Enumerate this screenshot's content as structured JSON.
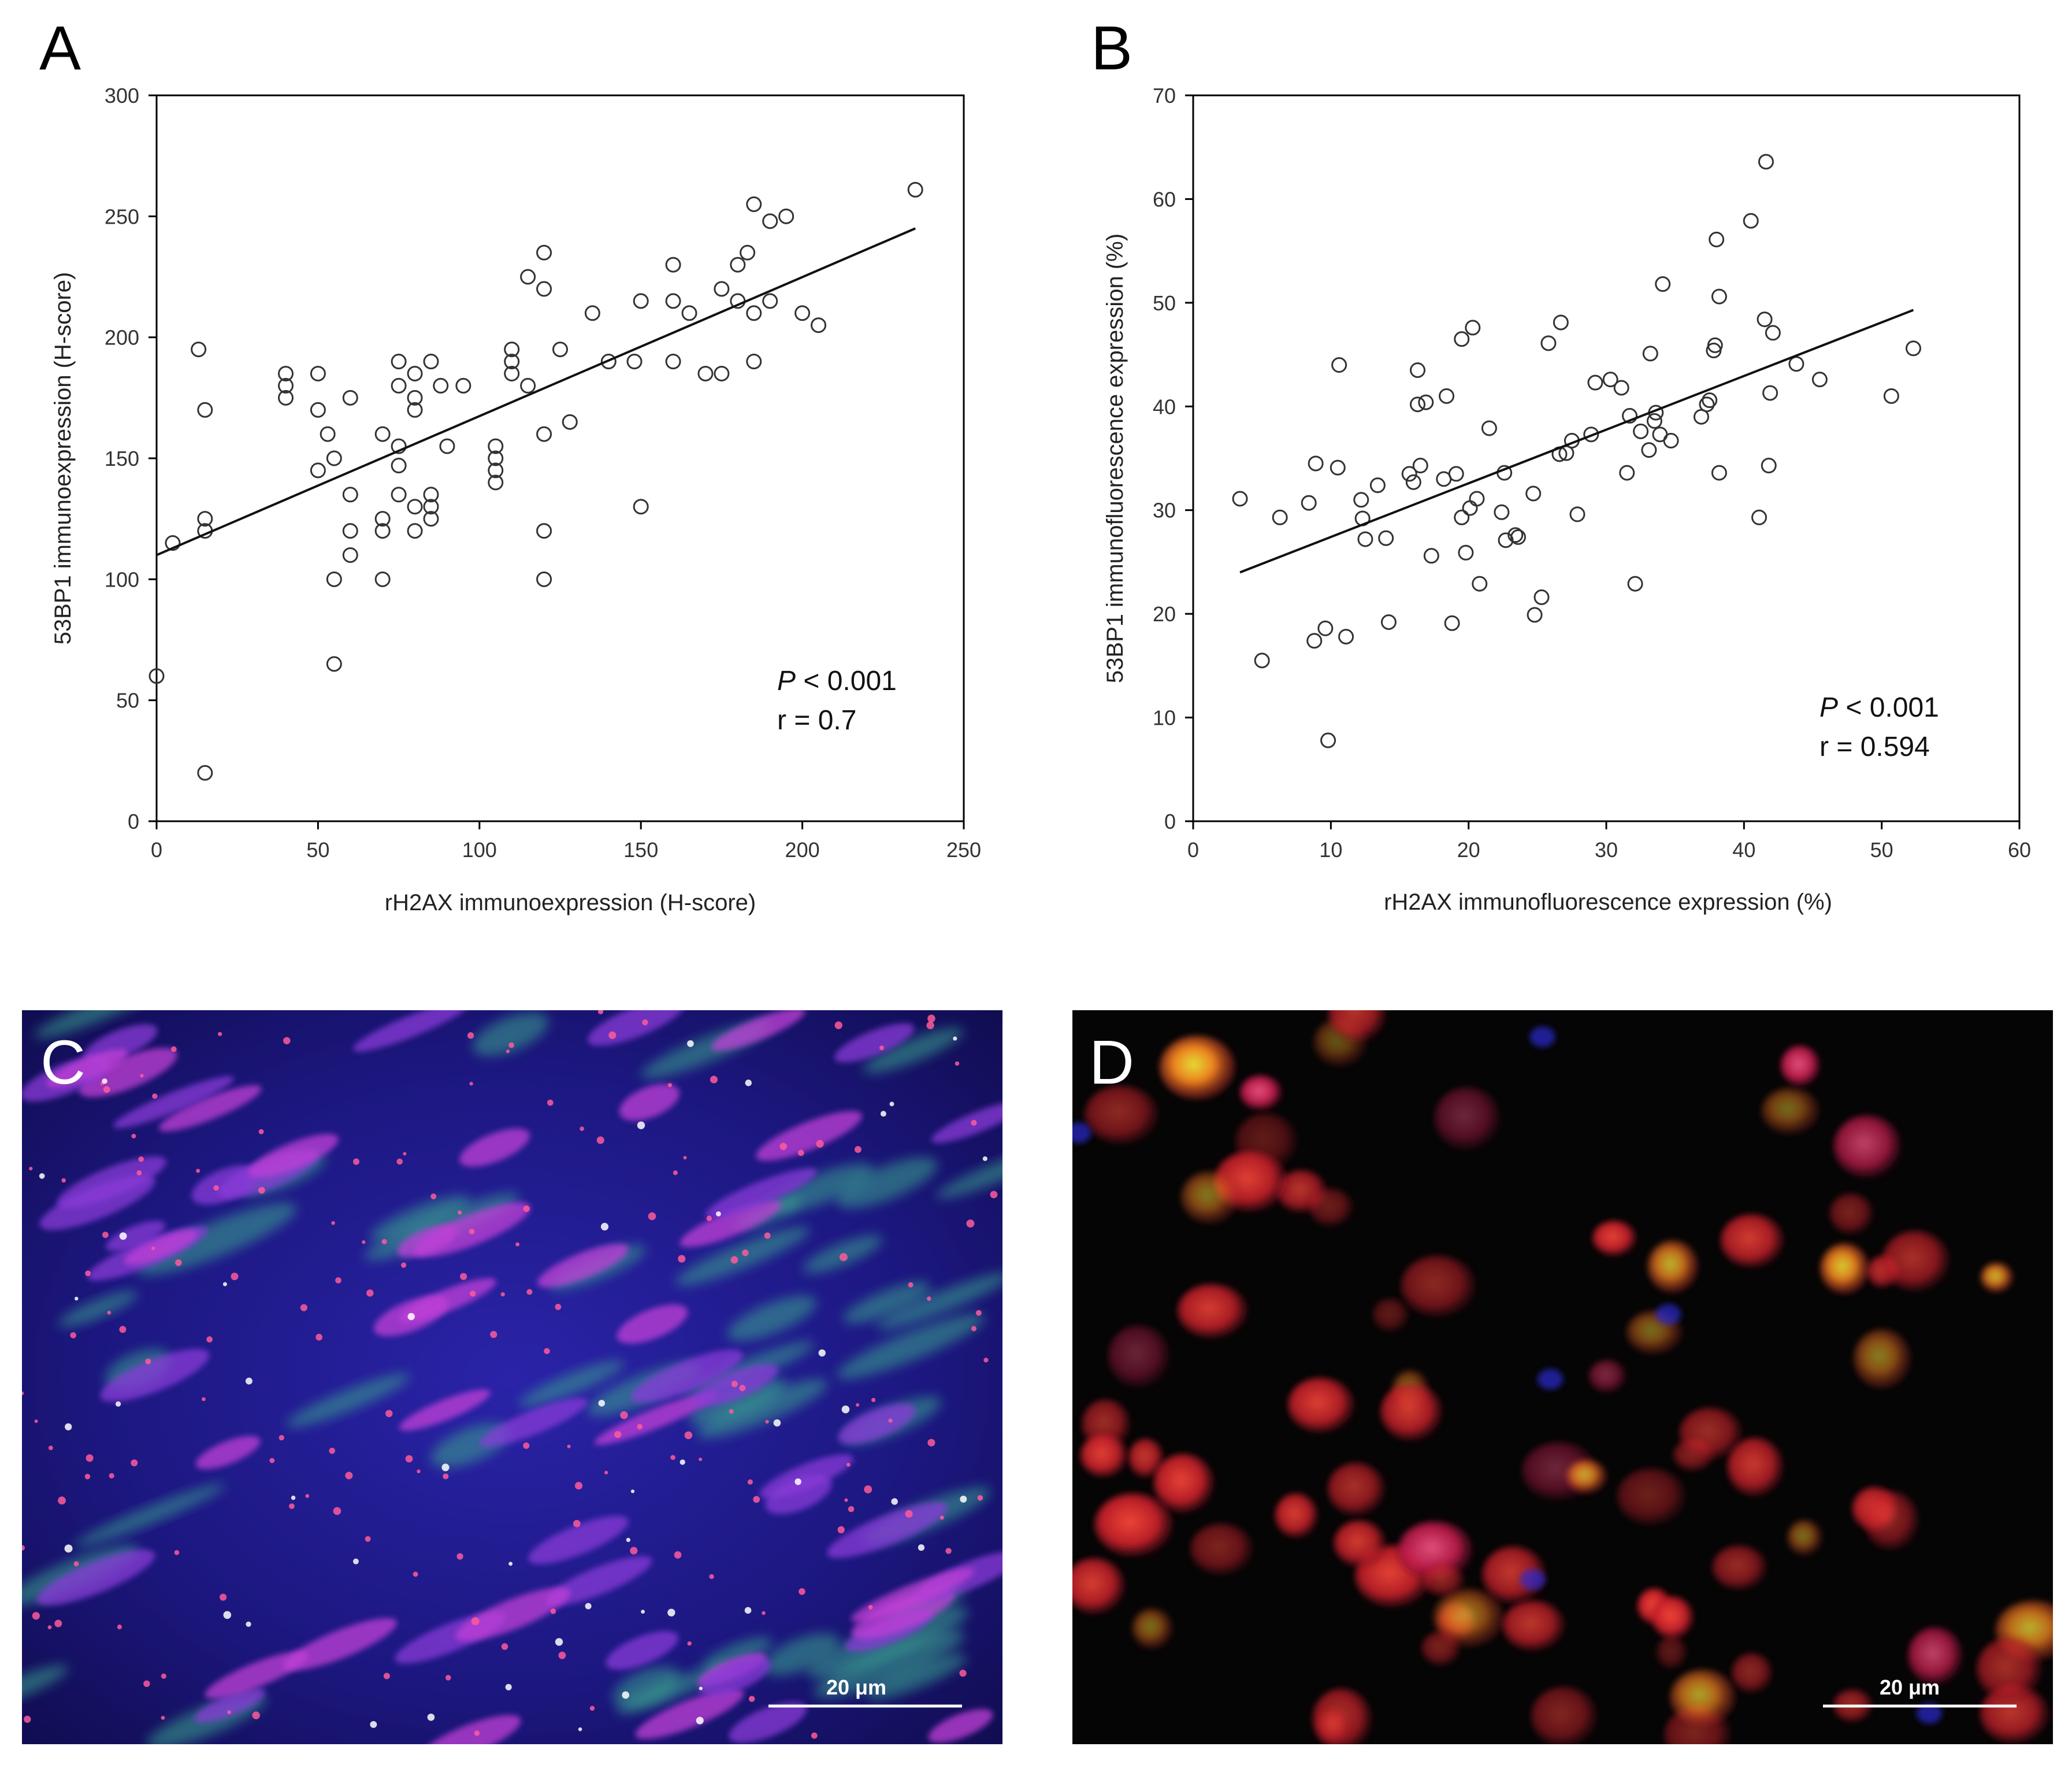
{
  "chart_data": [
    {
      "panel": "A",
      "type": "scatter",
      "xlabel": "rH2AX immunoexpression (H-score)",
      "ylabel": "53BP1 immunoexpression (H-score)",
      "xlim": [
        0,
        250
      ],
      "ylim": [
        0,
        300
      ],
      "xticks": [
        0,
        50,
        100,
        150,
        200,
        250
      ],
      "yticks": [
        0,
        50,
        100,
        150,
        200,
        250,
        300
      ],
      "points": [
        [
          0,
          60
        ],
        [
          5,
          115
        ],
        [
          13,
          195
        ],
        [
          15,
          170
        ],
        [
          15,
          125
        ],
        [
          15,
          120
        ],
        [
          15,
          20
        ],
        [
          40,
          185
        ],
        [
          40,
          180
        ],
        [
          40,
          175
        ],
        [
          50,
          185
        ],
        [
          50,
          170
        ],
        [
          50,
          145
        ],
        [
          53,
          160
        ],
        [
          55,
          150
        ],
        [
          55,
          100
        ],
        [
          55,
          65
        ],
        [
          60,
          175
        ],
        [
          60,
          135
        ],
        [
          60,
          120
        ],
        [
          60,
          110
        ],
        [
          70,
          160
        ],
        [
          70,
          125
        ],
        [
          70,
          120
        ],
        [
          70,
          100
        ],
        [
          75,
          190
        ],
        [
          75,
          180
        ],
        [
          75,
          155
        ],
        [
          75,
          147
        ],
        [
          75,
          135
        ],
        [
          80,
          185
        ],
        [
          80,
          175
        ],
        [
          80,
          170
        ],
        [
          80,
          130
        ],
        [
          80,
          120
        ],
        [
          85,
          190
        ],
        [
          85,
          135
        ],
        [
          85,
          130
        ],
        [
          85,
          125
        ],
        [
          88,
          180
        ],
        [
          90,
          155
        ],
        [
          95,
          180
        ],
        [
          105,
          155
        ],
        [
          105,
          150
        ],
        [
          105,
          145
        ],
        [
          105,
          140
        ],
        [
          110,
          195
        ],
        [
          110,
          190
        ],
        [
          110,
          185
        ],
        [
          115,
          225
        ],
        [
          115,
          180
        ],
        [
          120,
          235
        ],
        [
          120,
          220
        ],
        [
          120,
          160
        ],
        [
          120,
          120
        ],
        [
          120,
          100
        ],
        [
          125,
          195
        ],
        [
          128,
          165
        ],
        [
          135,
          210
        ],
        [
          140,
          190
        ],
        [
          148,
          190
        ],
        [
          150,
          215
        ],
        [
          150,
          130
        ],
        [
          160,
          230
        ],
        [
          160,
          215
        ],
        [
          160,
          190
        ],
        [
          165,
          210
        ],
        [
          170,
          185
        ],
        [
          175,
          220
        ],
        [
          175,
          185
        ],
        [
          180,
          230
        ],
        [
          180,
          215
        ],
        [
          183,
          235
        ],
        [
          185,
          255
        ],
        [
          185,
          210
        ],
        [
          185,
          190
        ],
        [
          190,
          248
        ],
        [
          190,
          215
        ],
        [
          195,
          250
        ],
        [
          200,
          210
        ],
        [
          205,
          205
        ],
        [
          235,
          261
        ]
      ],
      "trendline": [
        [
          0,
          110
        ],
        [
          235,
          245
        ]
      ],
      "annotations": {
        "p_label": "P",
        "p_value": " < 0.001",
        "r": "r = 0.7"
      }
    },
    {
      "panel": "B",
      "type": "scatter",
      "xlabel": "rH2AX immunofluorescence expression (%)",
      "ylabel": "53BP1 immunofluorescence expression (%)",
      "xlim": [
        0,
        60
      ],
      "ylim": [
        0,
        70
      ],
      "xticks": [
        0,
        10,
        20,
        30,
        40,
        50,
        60
      ],
      "yticks": [
        0,
        10,
        20,
        30,
        40,
        50,
        60,
        70
      ],
      "points": [
        [
          3.4,
          31.1
        ],
        [
          5,
          15.5
        ],
        [
          6.3,
          29.3
        ],
        [
          8.4,
          30.7
        ],
        [
          8.8,
          17.4
        ],
        [
          8.9,
          34.5
        ],
        [
          9.6,
          18.6
        ],
        [
          9.8,
          7.8
        ],
        [
          10.5,
          34.1
        ],
        [
          10.6,
          44
        ],
        [
          11.1,
          17.8
        ],
        [
          12.2,
          31
        ],
        [
          12.3,
          29.2
        ],
        [
          12.5,
          27.2
        ],
        [
          13.4,
          32.4
        ],
        [
          14,
          27.3
        ],
        [
          14.2,
          19.2
        ],
        [
          15.7,
          33.5
        ],
        [
          16,
          32.7
        ],
        [
          16.3,
          43.5
        ],
        [
          16.3,
          40.2
        ],
        [
          16.5,
          34.3
        ],
        [
          16.9,
          40.4
        ],
        [
          17.3,
          25.6
        ],
        [
          18.2,
          33
        ],
        [
          18.4,
          41
        ],
        [
          18.8,
          19.1
        ],
        [
          19.1,
          33.5
        ],
        [
          19.5,
          46.5
        ],
        [
          19.5,
          29.3
        ],
        [
          19.8,
          25.9
        ],
        [
          20.1,
          30.2
        ],
        [
          20.3,
          47.6
        ],
        [
          20.6,
          31.1
        ],
        [
          20.8,
          22.9
        ],
        [
          21.5,
          37.9
        ],
        [
          22.4,
          29.8
        ],
        [
          22.6,
          33.6
        ],
        [
          22.7,
          27.1
        ],
        [
          23.4,
          27.6
        ],
        [
          23.6,
          27.4
        ],
        [
          24.7,
          31.6
        ],
        [
          24.8,
          19.9
        ],
        [
          25.3,
          21.6
        ],
        [
          25.8,
          46.1
        ],
        [
          26.6,
          35.4
        ],
        [
          26.7,
          48.1
        ],
        [
          27.1,
          35.5
        ],
        [
          27.5,
          36.7
        ],
        [
          27.9,
          29.6
        ],
        [
          28.9,
          37.3
        ],
        [
          29.2,
          42.3
        ],
        [
          30.3,
          42.6
        ],
        [
          31.1,
          41.8
        ],
        [
          31.5,
          33.6
        ],
        [
          31.7,
          39.1
        ],
        [
          32.1,
          22.9
        ],
        [
          32.5,
          37.6
        ],
        [
          33.1,
          35.8
        ],
        [
          33.2,
          45.1
        ],
        [
          33.5,
          38.6
        ],
        [
          33.6,
          39.4
        ],
        [
          33.9,
          37.3
        ],
        [
          34.1,
          51.8
        ],
        [
          34.7,
          36.7
        ],
        [
          36.9,
          39
        ],
        [
          37.3,
          40.2
        ],
        [
          37.5,
          40.6
        ],
        [
          37.8,
          45.4
        ],
        [
          37.9,
          45.9
        ],
        [
          38,
          56.1
        ],
        [
          38.2,
          50.6
        ],
        [
          38.2,
          33.6
        ],
        [
          41.1,
          29.3
        ],
        [
          41.5,
          48.4
        ],
        [
          41.6,
          63.6
        ],
        [
          41.8,
          34.3
        ],
        [
          41.9,
          41.3
        ],
        [
          42.1,
          47.1
        ],
        [
          43.8,
          44.1
        ],
        [
          45.5,
          42.6
        ],
        [
          50.7,
          41
        ],
        [
          52.3,
          45.6
        ],
        [
          40.5,
          57.9
        ]
      ],
      "trendline": [
        [
          3.4,
          24
        ],
        [
          52.3,
          49.3
        ]
      ],
      "annotations": {
        "p_label": "P",
        "p_value": " < 0.001",
        "r": "r = 0.594"
      }
    }
  ],
  "panel_labels": [
    "A",
    "B",
    "C",
    "D"
  ],
  "micrographs": {
    "c_scale_bar": "20 μm",
    "d_scale_bar": "20 μm"
  }
}
